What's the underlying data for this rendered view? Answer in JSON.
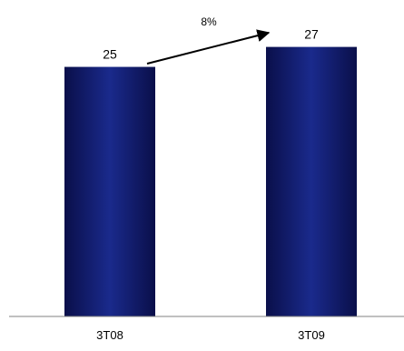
{
  "chart_data": {
    "type": "bar",
    "categories": [
      "3T08",
      "3T09"
    ],
    "values": [
      25,
      27
    ],
    "data_labels": [
      "25",
      "27"
    ],
    "title": "",
    "xlabel": "",
    "ylabel": "",
    "ylim": [
      0,
      31.7
    ],
    "grid": false,
    "legend": "none",
    "annotation": {
      "text": "8%",
      "type": "growth-arrow",
      "from": "3T08",
      "to": "3T09"
    },
    "colors": {
      "bar_dark": "#0a0f4a",
      "bar_mid": "#1a2a8c",
      "axis": "#808080",
      "text": "#000000"
    }
  }
}
